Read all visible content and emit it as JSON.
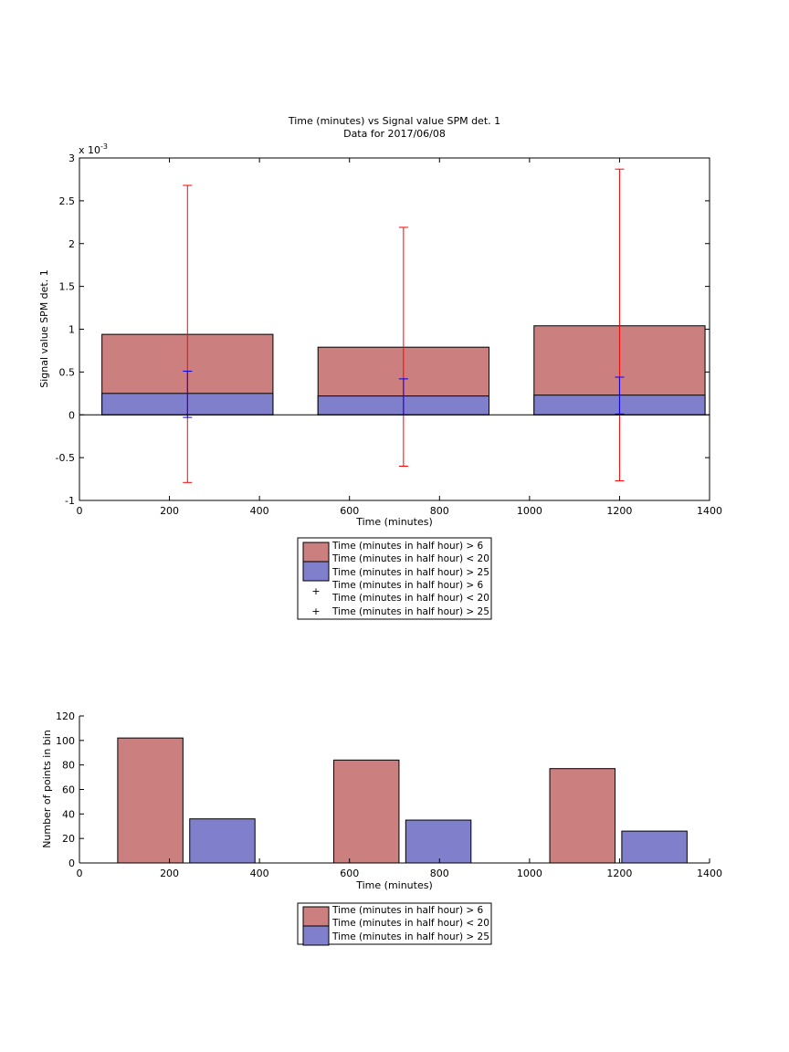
{
  "chart_data": [
    {
      "type": "bar",
      "title": "Time (minutes) vs Signal value SPM det. 1",
      "subtitle": "Data for 2017/06/08",
      "xlabel": "Time (minutes)",
      "ylabel": "Signal value SPM det. 1",
      "y_exponent_label": "x 10",
      "y_exponent": "-3",
      "xlim": [
        0,
        1400
      ],
      "ylim": [
        -1,
        3
      ],
      "xticks": [
        0,
        200,
        400,
        600,
        800,
        1000,
        1200,
        1400
      ],
      "yticks": [
        -1,
        -0.5,
        0,
        0.5,
        1,
        1.5,
        2,
        2.5,
        3
      ],
      "bar_ranges": [
        [
          50,
          430
        ],
        [
          530,
          910
        ],
        [
          1010,
          1390
        ]
      ],
      "series": [
        {
          "name": "Time (minutes in half hour) > 6\nTime (minutes in half hour) < 20",
          "color": "#cc7f7f",
          "values": [
            0.94,
            0.79,
            1.04
          ],
          "errorbars": {
            "name": "Time (minutes in half hour) > 6\nTime (minutes in half hour) < 20",
            "color": "#ff0000",
            "x": [
              240,
              720,
              1200
            ],
            "low": [
              -0.79,
              -0.6,
              -0.77
            ],
            "high": [
              2.68,
              2.19,
              2.87
            ]
          }
        },
        {
          "name": "Time (minutes in half hour) > 25",
          "color": "#7f7fcc",
          "values": [
            0.25,
            0.22,
            0.23
          ],
          "errorbars": {
            "name": "Time (minutes in half hour) > 25",
            "color": "#0000ff",
            "x": [
              240,
              720,
              1200
            ],
            "low": [
              -0.03,
              0.0,
              0.01
            ],
            "high": [
              0.51,
              0.42,
              0.44
            ]
          }
        }
      ]
    },
    {
      "type": "bar",
      "xlabel": "Time (minutes)",
      "ylabel": "Number of points in bin",
      "xlim": [
        0,
        1400
      ],
      "ylim": [
        0,
        120
      ],
      "xticks": [
        0,
        200,
        400,
        600,
        800,
        1000,
        1200,
        1400
      ],
      "yticks": [
        0,
        20,
        40,
        60,
        80,
        100,
        120
      ],
      "series": [
        {
          "name": "Time (minutes in half hour) > 6\nTime (minutes in half hour) < 20",
          "color": "#cc7f7f",
          "ranges": [
            [
              85,
              230
            ],
            [
              565,
              710
            ],
            [
              1045,
              1190
            ]
          ],
          "values": [
            102,
            84,
            77
          ]
        },
        {
          "name": "Time (minutes in half hour) > 25",
          "color": "#7f7fcc",
          "ranges": [
            [
              245,
              390
            ],
            [
              725,
              870
            ],
            [
              1205,
              1350
            ]
          ],
          "values": [
            36,
            35,
            26
          ]
        }
      ]
    }
  ]
}
